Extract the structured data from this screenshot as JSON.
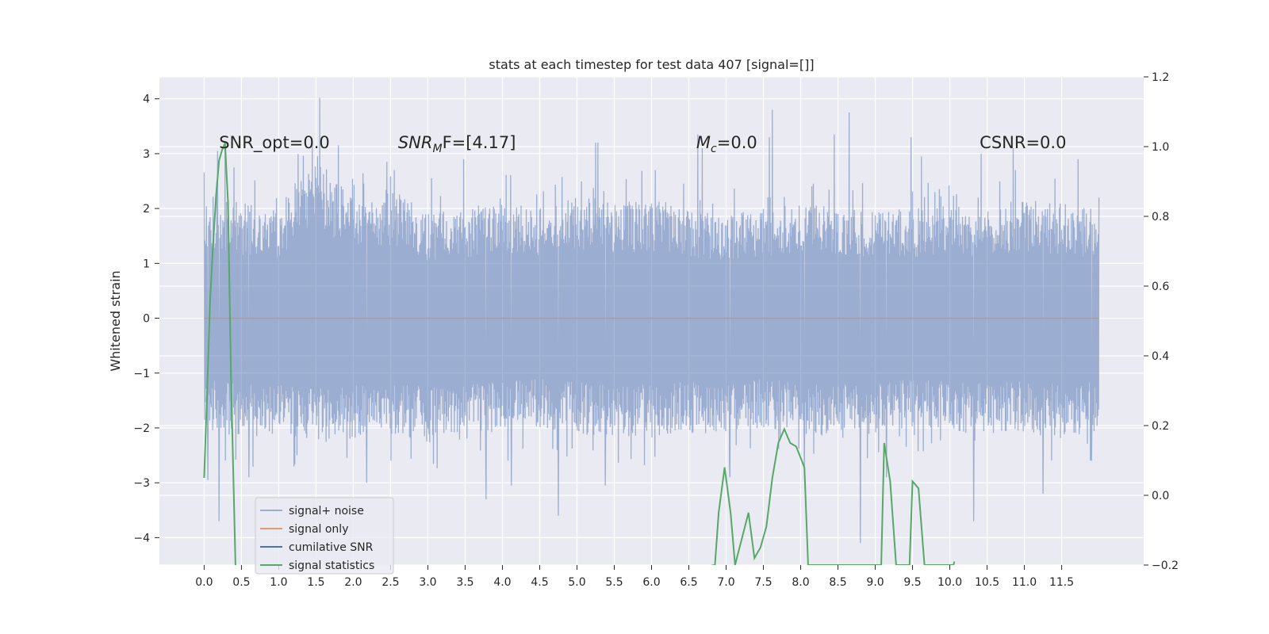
{
  "chart_data": {
    "type": "line",
    "title": "stats at each timestep for test data 407 [signal=[]]",
    "ylabel": "Whitened strain",
    "xlabel": "",
    "xlim": [
      -0.6,
      12.6
    ],
    "ylim": [
      -4.5,
      4.4
    ],
    "y2lim": [
      -0.2,
      1.2
    ],
    "x_ticks": [
      0.0,
      0.5,
      1.0,
      1.5,
      2.0,
      2.5,
      3.0,
      3.5,
      4.0,
      4.5,
      5.0,
      5.5,
      6.0,
      6.5,
      7.0,
      7.5,
      8.0,
      8.5,
      9.0,
      9.5,
      10.0,
      10.5,
      11.0,
      11.5
    ],
    "x_tick_labels": [
      "0.0",
      "0.5",
      "1.0",
      "1.5",
      "2.0",
      "2.5",
      "3.0",
      "3.5",
      "4.0",
      "4.5",
      "5.0",
      "5.5",
      "6.0",
      "6.5",
      "7.0",
      "7.5",
      "8.0",
      "8.5",
      "9.0",
      "9.5",
      "10.0",
      "10.5",
      "11.0",
      "11.5"
    ],
    "y_ticks": [
      4,
      3,
      2,
      1,
      0,
      -1,
      -2,
      -3,
      -4
    ],
    "y_tick_labels": [
      "4",
      "3",
      "2",
      "1",
      "0",
      "−1",
      "−2",
      "−3",
      "−4"
    ],
    "y2_ticks": [
      1.2,
      1.0,
      0.8,
      0.6,
      0.4,
      0.2,
      0.0,
      -0.2
    ],
    "y2_tick_labels": [
      "1.2",
      "1.0",
      "0.8",
      "0.6",
      "0.4",
      "0.2",
      "0.0",
      "−0.2"
    ],
    "grid": true,
    "legend_position": "lower-left",
    "annotations": [
      {
        "text": "SNR_opt=0.0",
        "x": 0.2,
        "y": 3.2
      },
      {
        "text": "SNR",
        "sub": "M",
        "tail": "F=[4.17]",
        "x": 2.6,
        "y": 3.2
      },
      {
        "text": "M",
        "sub": "c",
        "tail": "=0.0",
        "x": 6.6,
        "y": 3.2
      },
      {
        "text": "CSNR=0.0",
        "x": 10.4,
        "y": 3.2
      }
    ],
    "series": [
      {
        "name": "signal+ noise",
        "color": "#4c72b0",
        "opacity": 0.5,
        "axis": "left",
        "x_range": [
          0.0,
          12.0
        ],
        "y_envelope_upper": [
          2.3,
          2.1,
          2.0,
          3.1,
          2.2,
          2.4,
          1.9,
          2.0,
          2.2,
          2.0,
          2.3,
          2.1,
          2.2,
          2.0,
          1.9,
          2.0,
          2.1,
          2.1,
          2.0,
          2.0,
          2.1,
          2.0,
          2.2,
          2.1,
          2.0
        ],
        "y_envelope_lower": [
          -2.0,
          -2.2,
          -2.1,
          -2.3,
          -2.2,
          -2.1,
          -2.3,
          -2.2,
          -2.1,
          -2.0,
          -2.1,
          -2.2,
          -2.2,
          -2.1,
          -2.2,
          -2.0,
          -2.1,
          -2.2,
          -2.1,
          -2.0,
          -2.1,
          -2.1,
          -2.1,
          -2.2,
          -2.1
        ],
        "spikes": [
          {
            "x": 0.18,
            "y": 3.05
          },
          {
            "x": 0.28,
            "y": 3.15
          },
          {
            "x": 0.2,
            "y": -3.7
          },
          {
            "x": 0.05,
            "y": -2.95
          },
          {
            "x": 1.55,
            "y": 4.02
          },
          {
            "x": 2.45,
            "y": 2.85
          },
          {
            "x": 2.18,
            "y": -3.0
          },
          {
            "x": 3.48,
            "y": 2.9
          },
          {
            "x": 3.78,
            "y": -3.3
          },
          {
            "x": 4.12,
            "y": -3.05
          },
          {
            "x": 4.75,
            "y": -3.6
          },
          {
            "x": 5.28,
            "y": 3.2
          },
          {
            "x": 5.38,
            "y": -3.05
          },
          {
            "x": 6.62,
            "y": 3.35
          },
          {
            "x": 6.68,
            "y": 3.1
          },
          {
            "x": 7.58,
            "y": 3.3
          },
          {
            "x": 7.62,
            "y": 3.8
          },
          {
            "x": 8.45,
            "y": 3.35
          },
          {
            "x": 8.65,
            "y": 3.75
          },
          {
            "x": 8.8,
            "y": -4.1
          },
          {
            "x": 9.48,
            "y": 3.3
          },
          {
            "x": 10.42,
            "y": 3.0
          },
          {
            "x": 10.32,
            "y": -3.7
          },
          {
            "x": 11.25,
            "y": -3.2
          },
          {
            "x": 11.72,
            "y": 2.9
          },
          {
            "x": 10.85,
            "y": 3.1
          },
          {
            "x": 2.55,
            "y": 2.7
          },
          {
            "x": 5.25,
            "y": 3.2
          },
          {
            "x": 9.62,
            "y": 2.95
          },
          {
            "x": 10.88,
            "y": 2.7
          },
          {
            "x": 11.9,
            "y": -2.6
          },
          {
            "x": 0.4,
            "y": 2.75
          },
          {
            "x": 1.3,
            "y": 2.5
          },
          {
            "x": 3.05,
            "y": 2.55
          },
          {
            "x": 6.05,
            "y": 2.7
          },
          {
            "x": 7.05,
            "y": -2.9
          },
          {
            "x": 8.05,
            "y": -2.9
          },
          {
            "x": 9.15,
            "y": -2.9
          },
          {
            "x": 12.0,
            "y": 2.2
          },
          {
            "x": 0.6,
            "y": -2.9
          }
        ]
      },
      {
        "name": "signal only",
        "color": "#dd8452",
        "axis": "left",
        "x": [
          0.0,
          12.0
        ],
        "y": [
          0.0,
          0.0
        ]
      },
      {
        "name": "cumilative SNR",
        "color": "#4c72b0",
        "axis": "right",
        "x": [],
        "y": []
      },
      {
        "name": "signal statistics",
        "color": "#55a868",
        "axis": "right",
        "x": [
          0.0,
          0.04,
          0.08,
          0.12,
          0.16,
          0.2,
          0.24,
          0.28,
          0.32,
          0.36,
          0.42,
          0.48,
          6.85,
          6.9,
          6.98,
          7.06,
          7.12,
          7.3,
          7.38,
          7.46,
          7.54,
          7.62,
          7.7,
          7.78,
          7.86,
          7.94,
          8.05,
          8.1,
          9.08,
          9.12,
          9.2,
          9.28,
          9.46,
          9.5,
          9.58,
          9.66,
          10.05,
          10.06
        ],
        "y": [
          0.05,
          0.3,
          0.56,
          0.72,
          0.86,
          0.96,
          0.99,
          1.01,
          0.84,
          0.34,
          -0.2,
          -0.45,
          -0.2,
          -0.05,
          0.08,
          -0.05,
          -0.2,
          -0.05,
          -0.18,
          -0.15,
          -0.09,
          0.05,
          0.15,
          0.19,
          0.15,
          0.14,
          0.08,
          -0.2,
          -0.2,
          0.15,
          0.04,
          -0.2,
          -0.2,
          0.04,
          0.02,
          -0.2,
          -0.2,
          -0.19
        ]
      }
    ]
  }
}
